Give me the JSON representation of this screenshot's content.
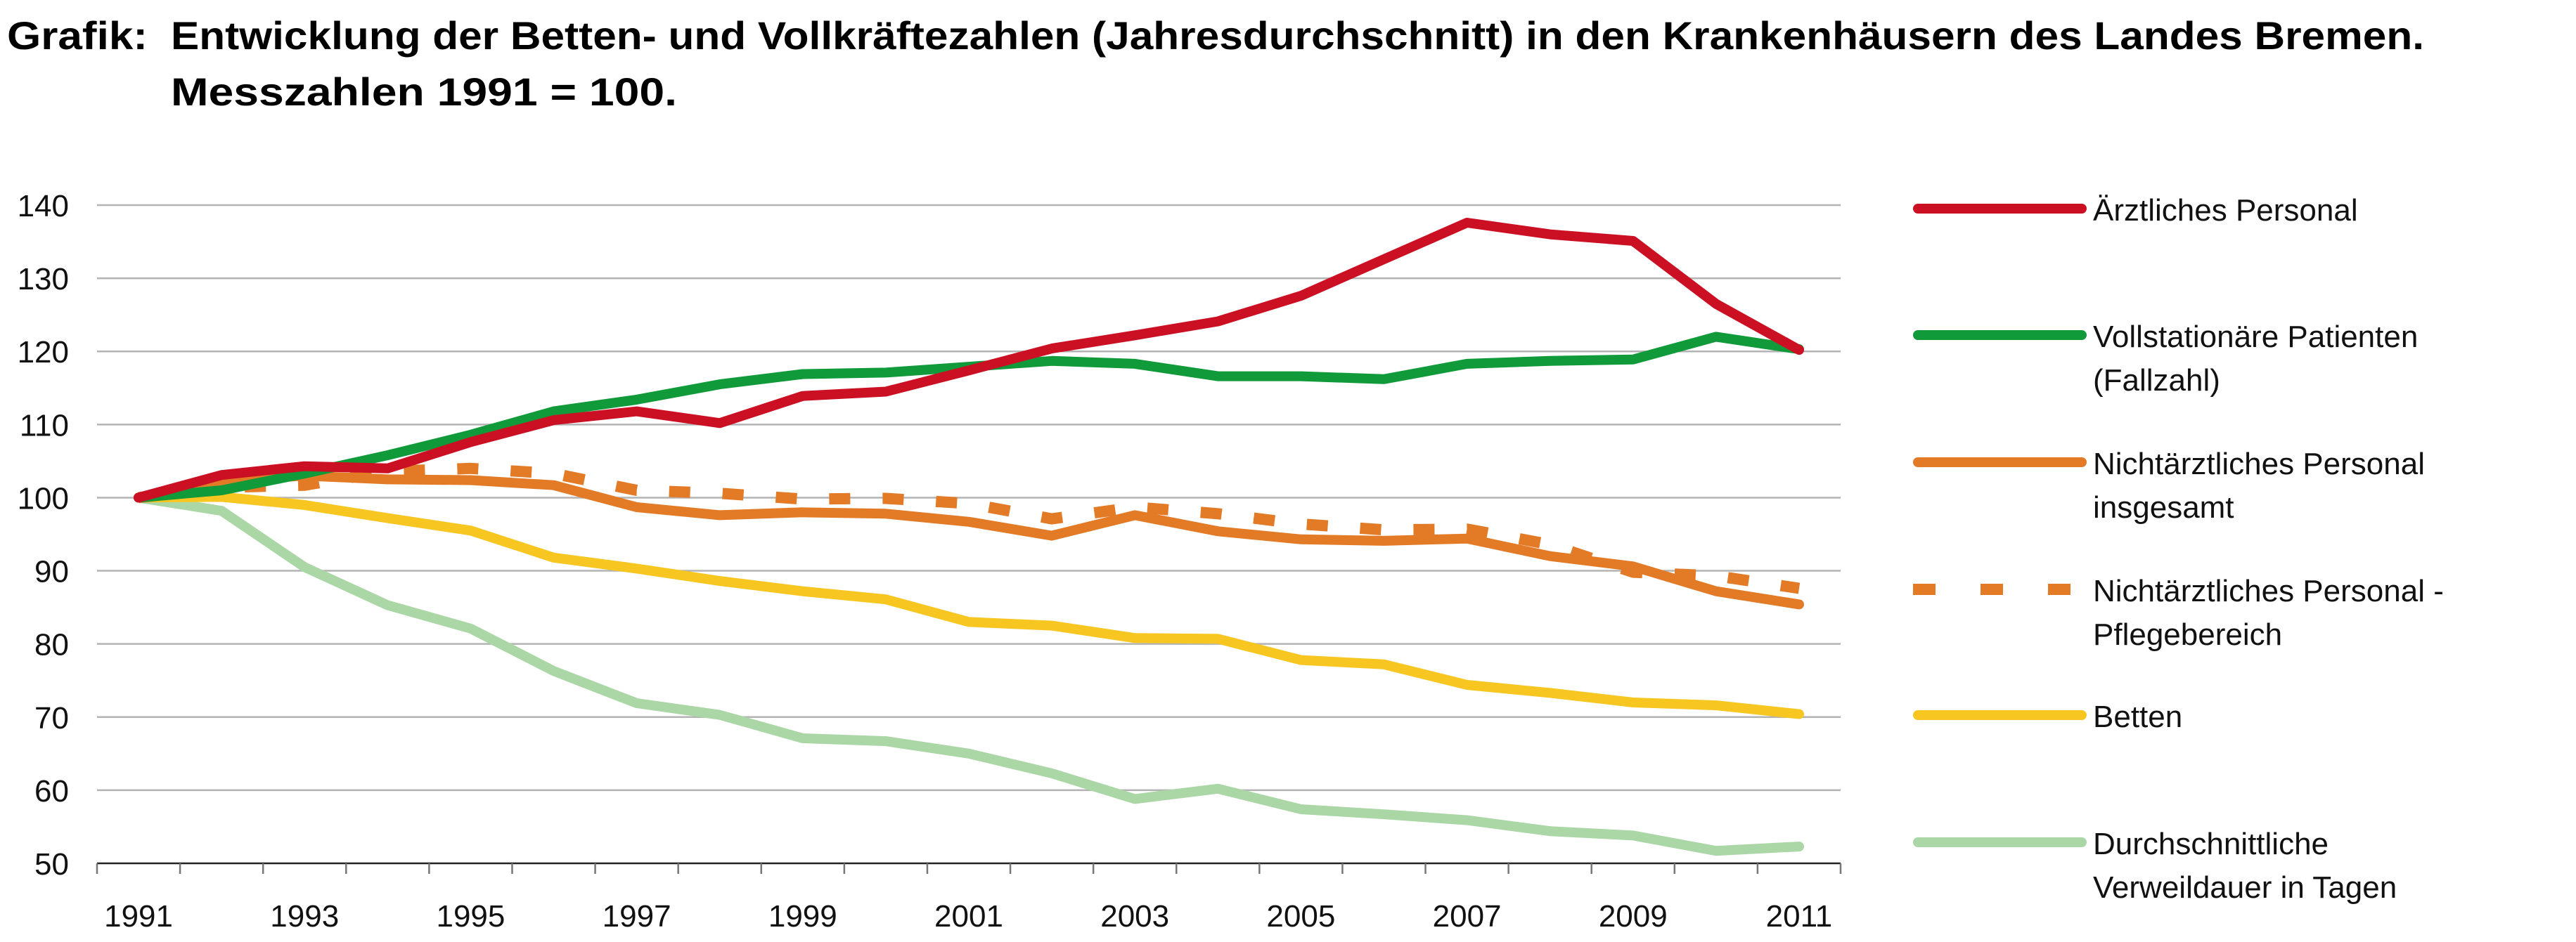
{
  "title": {
    "prefix": "Grafik:",
    "line1": "Entwicklung der Betten- und Vollkräftezahlen (Jahresdurchschnitt) in den Krankenhäusern des Landes Bremen.",
    "line2": "Messzahlen 1991 = 100."
  },
  "chart_data": {
    "type": "line",
    "title": "Entwicklung der Betten- und Vollkräftezahlen (Jahresdurchschnitt) in den Krankenhäusern des Landes Bremen. Messzahlen 1991 = 100.",
    "xlabel": "",
    "ylabel": "",
    "ylim": [
      50,
      140
    ],
    "yticks": [
      "50",
      "60",
      "70",
      "80",
      "90",
      "100",
      "110",
      "120",
      "130",
      "140"
    ],
    "xtick_labels": [
      "1991",
      "1993",
      "1995",
      "1997",
      "1999",
      "2001",
      "2003",
      "2005",
      "2007",
      "2009",
      "2011"
    ],
    "x": [
      1991,
      1992,
      1993,
      1994,
      1995,
      1996,
      1997,
      1998,
      1999,
      2000,
      2001,
      2002,
      2003,
      2004,
      2005,
      2006,
      2007,
      2008,
      2009,
      2010,
      2011
    ],
    "grid": true,
    "legend_position": "right",
    "series": [
      {
        "name": "Ärztliches Personal",
        "legend_lines": [
          "Ärztliches Personal"
        ],
        "color": "#cc1024",
        "style": "solid",
        "values": [
          100,
          103.1,
          104.3,
          104.0,
          107.6,
          110.6,
          111.8,
          110.2,
          113.9,
          114.5,
          117.4,
          120.4,
          122.2,
          124.1,
          127.6,
          132.6,
          137.6,
          136.0,
          135.1,
          126.5,
          120.2
        ]
      },
      {
        "name": "Vollstationäre Patienten (Fallzahl)",
        "legend_lines": [
          "Vollstationäre Patienten",
          "(Fallzahl)"
        ],
        "color": "#109a3a",
        "style": "solid",
        "values": [
          100,
          101.0,
          103.3,
          105.8,
          108.6,
          111.8,
          113.4,
          115.5,
          116.9,
          117.1,
          117.9,
          118.7,
          118.3,
          116.6,
          116.6,
          116.2,
          118.3,
          118.7,
          118.9,
          122.0,
          120.3
        ]
      },
      {
        "name": "Nichtärztliches Personal insgesamt",
        "legend_lines": [
          "Nichtärztliches Personal",
          "insgesamt"
        ],
        "color": "#e27a26",
        "style": "solid",
        "values": [
          100,
          102.3,
          103.0,
          102.5,
          102.4,
          101.7,
          98.7,
          97.6,
          98.0,
          97.8,
          96.7,
          94.8,
          97.6,
          95.4,
          94.3,
          94.1,
          94.4,
          92.0,
          90.6,
          87.2,
          85.4
        ]
      },
      {
        "name": "Nichtärztliches Personal - Pflegebereich",
        "legend_lines": [
          "Nichtärztliches Personal -",
          "Pflegebereich"
        ],
        "color": "#e27a26",
        "style": "dotted",
        "values": [
          100,
          101.4,
          101.7,
          103.6,
          104.0,
          103.3,
          101.0,
          100.6,
          99.8,
          99.9,
          99.2,
          97.1,
          98.7,
          97.8,
          96.4,
          95.6,
          95.7,
          93.6,
          89.8,
          89.3,
          87.6
        ]
      },
      {
        "name": "Betten",
        "legend_lines": [
          "Betten"
        ],
        "color": "#f7c620",
        "style": "solid",
        "values": [
          100,
          100.1,
          99.0,
          97.2,
          95.5,
          91.8,
          90.3,
          88.6,
          87.2,
          86.1,
          83.0,
          82.5,
          80.8,
          80.7,
          77.8,
          77.2,
          74.4,
          73.3,
          72.0,
          71.6,
          70.4
        ]
      },
      {
        "name": "Durchschnittliche Verweildauer in Tagen",
        "legend_lines": [
          "Durchschnittliche",
          "Verweildauer in Tagen"
        ],
        "color": "#abd6a6",
        "style": "solid",
        "values": [
          100,
          98.2,
          90.5,
          85.3,
          82.1,
          76.3,
          71.9,
          70.3,
          67.1,
          66.7,
          65.0,
          62.3,
          58.8,
          60.2,
          57.4,
          56.7,
          55.9,
          54.4,
          53.8,
          51.7,
          52.3
        ]
      }
    ]
  }
}
